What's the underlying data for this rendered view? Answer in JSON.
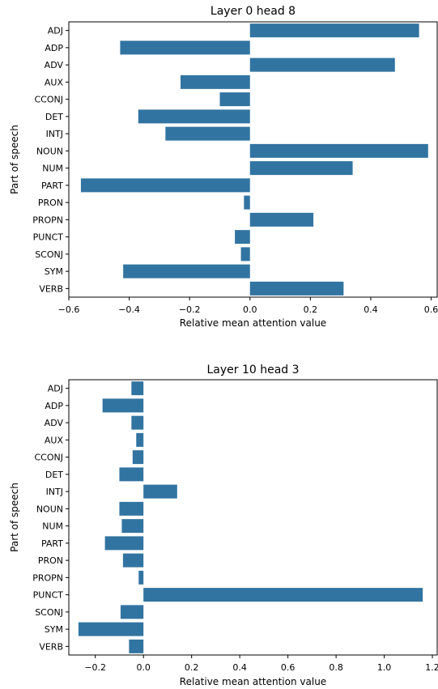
{
  "chart_data": [
    {
      "type": "bar",
      "orientation": "horizontal",
      "title": "Layer 0 head 8",
      "xlabel": "Relative mean attention value",
      "ylabel": "Part of speech",
      "categories": [
        "ADJ",
        "ADP",
        "ADV",
        "AUX",
        "CCONJ",
        "DET",
        "INTJ",
        "NOUN",
        "NUM",
        "PART",
        "PRON",
        "PROPN",
        "PUNCT",
        "SCONJ",
        "SYM",
        "VERB"
      ],
      "values": [
        0.56,
        -0.43,
        0.48,
        -0.23,
        -0.1,
        -0.37,
        -0.28,
        0.59,
        0.34,
        -0.56,
        -0.02,
        0.21,
        -0.05,
        -0.03,
        -0.42,
        0.31
      ],
      "xlim": [
        -0.6,
        0.62
      ],
      "xticks": [
        -0.6,
        -0.4,
        -0.2,
        0.0,
        0.2,
        0.4,
        0.6
      ],
      "xtick_labels": [
        "−0.6",
        "−0.4",
        "−0.2",
        "0.0",
        "0.2",
        "0.4",
        "0.6"
      ],
      "bar_color": "#3274a1"
    },
    {
      "type": "bar",
      "orientation": "horizontal",
      "title": "Layer 10 head 3",
      "xlabel": "Relative mean attention value",
      "ylabel": "Part of speech",
      "categories": [
        "ADJ",
        "ADP",
        "ADV",
        "AUX",
        "CCONJ",
        "DET",
        "INTJ",
        "NOUN",
        "NUM",
        "PART",
        "PRON",
        "PROPN",
        "PUNCT",
        "SCONJ",
        "SYM",
        "VERB"
      ],
      "values": [
        -0.05,
        -0.17,
        -0.05,
        -0.03,
        -0.045,
        -0.1,
        0.14,
        -0.1,
        -0.09,
        -0.16,
        -0.085,
        -0.02,
        1.16,
        -0.095,
        -0.27,
        -0.06
      ],
      "xlim": [
        -0.31,
        1.22
      ],
      "xticks": [
        -0.2,
        0.0,
        0.2,
        0.4,
        0.6,
        0.8,
        1.0,
        1.2
      ],
      "xtick_labels": [
        "−0.2",
        "0.0",
        "0.2",
        "0.4",
        "0.6",
        "0.8",
        "1.0",
        "1.2"
      ],
      "bar_color": "#3274a1"
    }
  ]
}
